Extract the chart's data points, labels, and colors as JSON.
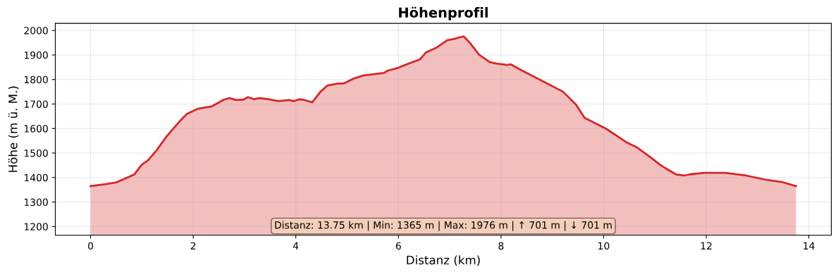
{
  "chart_data": {
    "type": "area",
    "title": "Höhenprofil",
    "xlabel": "Distanz (km)",
    "ylabel": "Höhe (m ü. M.)",
    "x": [
      0,
      0.3,
      0.5,
      0.85,
      1.0,
      1.12,
      1.29,
      1.49,
      1.74,
      1.88,
      2.08,
      2.36,
      2.6,
      2.71,
      2.84,
      2.98,
      3.07,
      3.18,
      3.29,
      3.46,
      3.66,
      3.8,
      3.87,
      3.96,
      4.07,
      4.14,
      4.32,
      4.48,
      4.62,
      4.83,
      4.94,
      5.13,
      5.31,
      5.72,
      5.79,
      6.0,
      6.2,
      6.42,
      6.54,
      6.75,
      6.95,
      7.09,
      7.23,
      7.27,
      7.4,
      7.57,
      7.78,
      7.91,
      8.12,
      8.19,
      8.39,
      8.73,
      9.21,
      9.46,
      9.63,
      9.77,
      10.04,
      10.31,
      10.45,
      10.65,
      10.86,
      11.13,
      11.24,
      11.41,
      11.57,
      11.68,
      11.96,
      12.37,
      12.78,
      13.19,
      13.47,
      13.75
    ],
    "series": [
      {
        "color": "#d62728",
        "values": [
          1365,
          1373,
          1380,
          1412,
          1453,
          1470,
          1512,
          1570,
          1630,
          1660,
          1680,
          1690,
          1718,
          1724,
          1716,
          1718,
          1728,
          1720,
          1724,
          1720,
          1712,
          1715,
          1716,
          1712,
          1719,
          1718,
          1707,
          1750,
          1776,
          1784,
          1784,
          1804,
          1816,
          1827,
          1836,
          1848,
          1865,
          1882,
          1911,
          1931,
          1960,
          1966,
          1974,
          1976,
          1948,
          1902,
          1871,
          1865,
          1859,
          1862,
          1839,
          1802,
          1750,
          1698,
          1643,
          1629,
          1600,
          1563,
          1543,
          1523,
          1491,
          1448,
          1434,
          1413,
          1408,
          1413,
          1419,
          1419,
          1408,
          1390,
          1382,
          1365
        ]
      }
    ],
    "xlim": [
      -0.6875,
      14.4375
    ],
    "xticks": [
      0,
      2,
      4,
      6,
      8,
      10,
      12,
      14
    ],
    "ylim": [
      1165,
      2029
    ],
    "yticks": [
      1200,
      1300,
      1400,
      1500,
      1600,
      1700,
      1800,
      1900,
      2000
    ],
    "grid": true,
    "annotations": [
      "Distanz: 13.75 km | Min: 1365 m | Max: 1976 m | ↑ 701 m | ↓ 701 m"
    ]
  }
}
